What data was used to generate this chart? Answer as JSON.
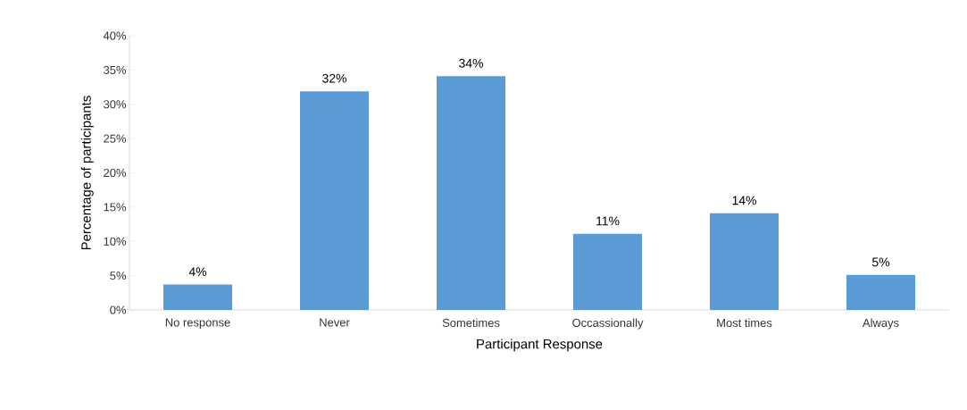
{
  "chart_data": {
    "type": "bar",
    "xlabel": "Participant Response",
    "ylabel": "Percentage of participants",
    "categories": [
      "No response",
      "Never",
      "Sometimes",
      "Occassionally",
      "Most times",
      "Always"
    ],
    "values": [
      3.7,
      31.9,
      34.1,
      11.1,
      14.1,
      5.1
    ],
    "value_labels": [
      "4%",
      "32%",
      "34%",
      "11%",
      "14%",
      "5%"
    ],
    "color": "#5b9bd5",
    "ylim": [
      0,
      40
    ],
    "yticks": [
      {
        "value": 0,
        "label": "0%"
      },
      {
        "value": 5,
        "label": "5%"
      },
      {
        "value": 10,
        "label": "10%"
      },
      {
        "value": 15,
        "label": "15%"
      },
      {
        "value": 20,
        "label": "20%"
      },
      {
        "value": 25,
        "label": "25%"
      },
      {
        "value": 30,
        "label": "30%"
      },
      {
        "value": 35,
        "label": "35%"
      },
      {
        "value": 40,
        "label": "40%"
      }
    ],
    "grid": false
  }
}
